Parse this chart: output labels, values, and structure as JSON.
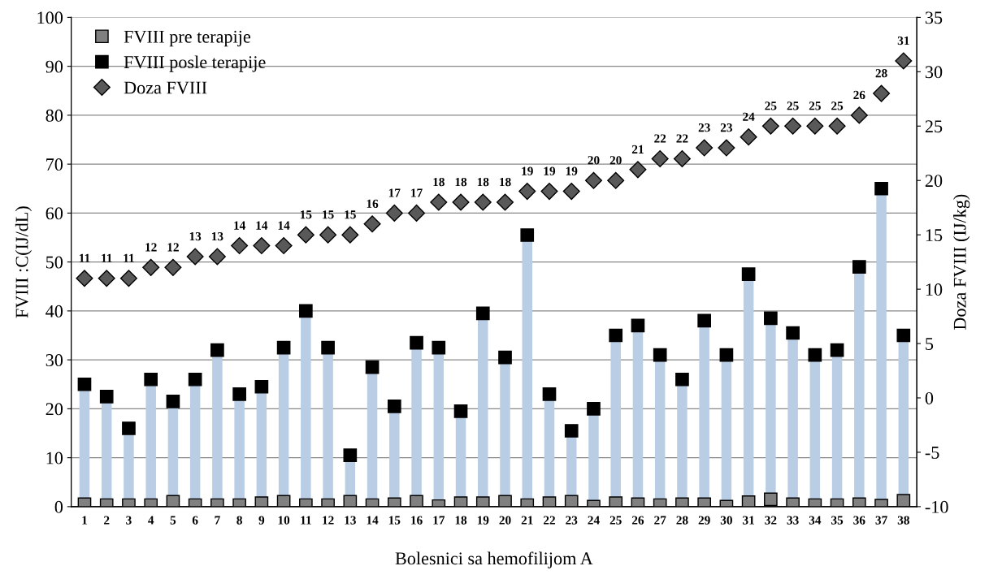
{
  "chart_data": {
    "type": "lollipop",
    "xlabel": "Bolesnici sa hemofilijom A",
    "ylabel": "FVIII :C(IJ/dL)",
    "y2label": "Doza FVIII (IJ/kg)",
    "categories": [
      "1",
      "2",
      "3",
      "4",
      "5",
      "6",
      "7",
      "8",
      "9",
      "10",
      "11",
      "12",
      "13",
      "14",
      "15",
      "16",
      "17",
      "18",
      "19",
      "20",
      "21",
      "22",
      "23",
      "24",
      "25",
      "26",
      "27",
      "28",
      "29",
      "30",
      "31",
      "32",
      "33",
      "34",
      "35",
      "36",
      "37",
      "38"
    ],
    "series": [
      {
        "type": "scatter",
        "name": "FVIII pre terapije",
        "color": "#808080",
        "marker": "square",
        "values": [
          0.5,
          0.3,
          0.3,
          0.3,
          1,
          0.3,
          0.3,
          0.3,
          0.7,
          1,
          0.3,
          0.3,
          1,
          0.3,
          0.5,
          1,
          0.1,
          0.7,
          0.7,
          1,
          0.3,
          0.7,
          1,
          0,
          0.7,
          0.5,
          0.3,
          0.5,
          0.5,
          0,
          0.9,
          1.5,
          0.5,
          0.3,
          0.3,
          0.5,
          0.2,
          1.2
        ]
      },
      {
        "name": "FVIII posle terapije",
        "color": "#000000",
        "marker": "square",
        "values": [
          25,
          22.5,
          16,
          26,
          21.5,
          26,
          32,
          23,
          24.5,
          32.5,
          40,
          32.5,
          10.5,
          28.5,
          20.5,
          33.5,
          32.5,
          19.5,
          39.5,
          30.5,
          55.5,
          23,
          15.5,
          20,
          35,
          37,
          31,
          26,
          38,
          31,
          47.5,
          38.5,
          35.5,
          31,
          32,
          49,
          65,
          35
        ]
      },
      {
        "type": "scatter",
        "name": "Doza FVIII",
        "color": "#595959",
        "marker": "diamond",
        "axis": "y2",
        "values": [
          11,
          11,
          11,
          12,
          12,
          13,
          13,
          14,
          14,
          14,
          15,
          15,
          15,
          16,
          17,
          17,
          18,
          18,
          18,
          18,
          19,
          19,
          19,
          20,
          20,
          21,
          22,
          22,
          23,
          23,
          24,
          25,
          25,
          25,
          25,
          26,
          28,
          31
        ],
        "value_labels": [
          "11",
          "11",
          "11",
          "12",
          "12",
          "13",
          "13",
          "14",
          "14",
          "14",
          "15",
          "15",
          "15",
          "16",
          "17",
          "17",
          "18",
          "18",
          "18",
          "18",
          "19",
          "19",
          "19",
          "20",
          "20",
          "21",
          "22",
          "22",
          "23",
          "23",
          "24",
          "25",
          "25",
          "25",
          "25",
          "26",
          "28",
          "31"
        ]
      }
    ],
    "ylim": [
      0,
      100
    ],
    "yticks": [
      0,
      10,
      20,
      30,
      40,
      50,
      60,
      70,
      80,
      90,
      100
    ],
    "y2lim": [
      -10,
      35
    ],
    "y2ticks": [
      -10,
      -5,
      0,
      5,
      10,
      15,
      20,
      25,
      30,
      35
    ],
    "grid": "y",
    "legend": "top left"
  }
}
